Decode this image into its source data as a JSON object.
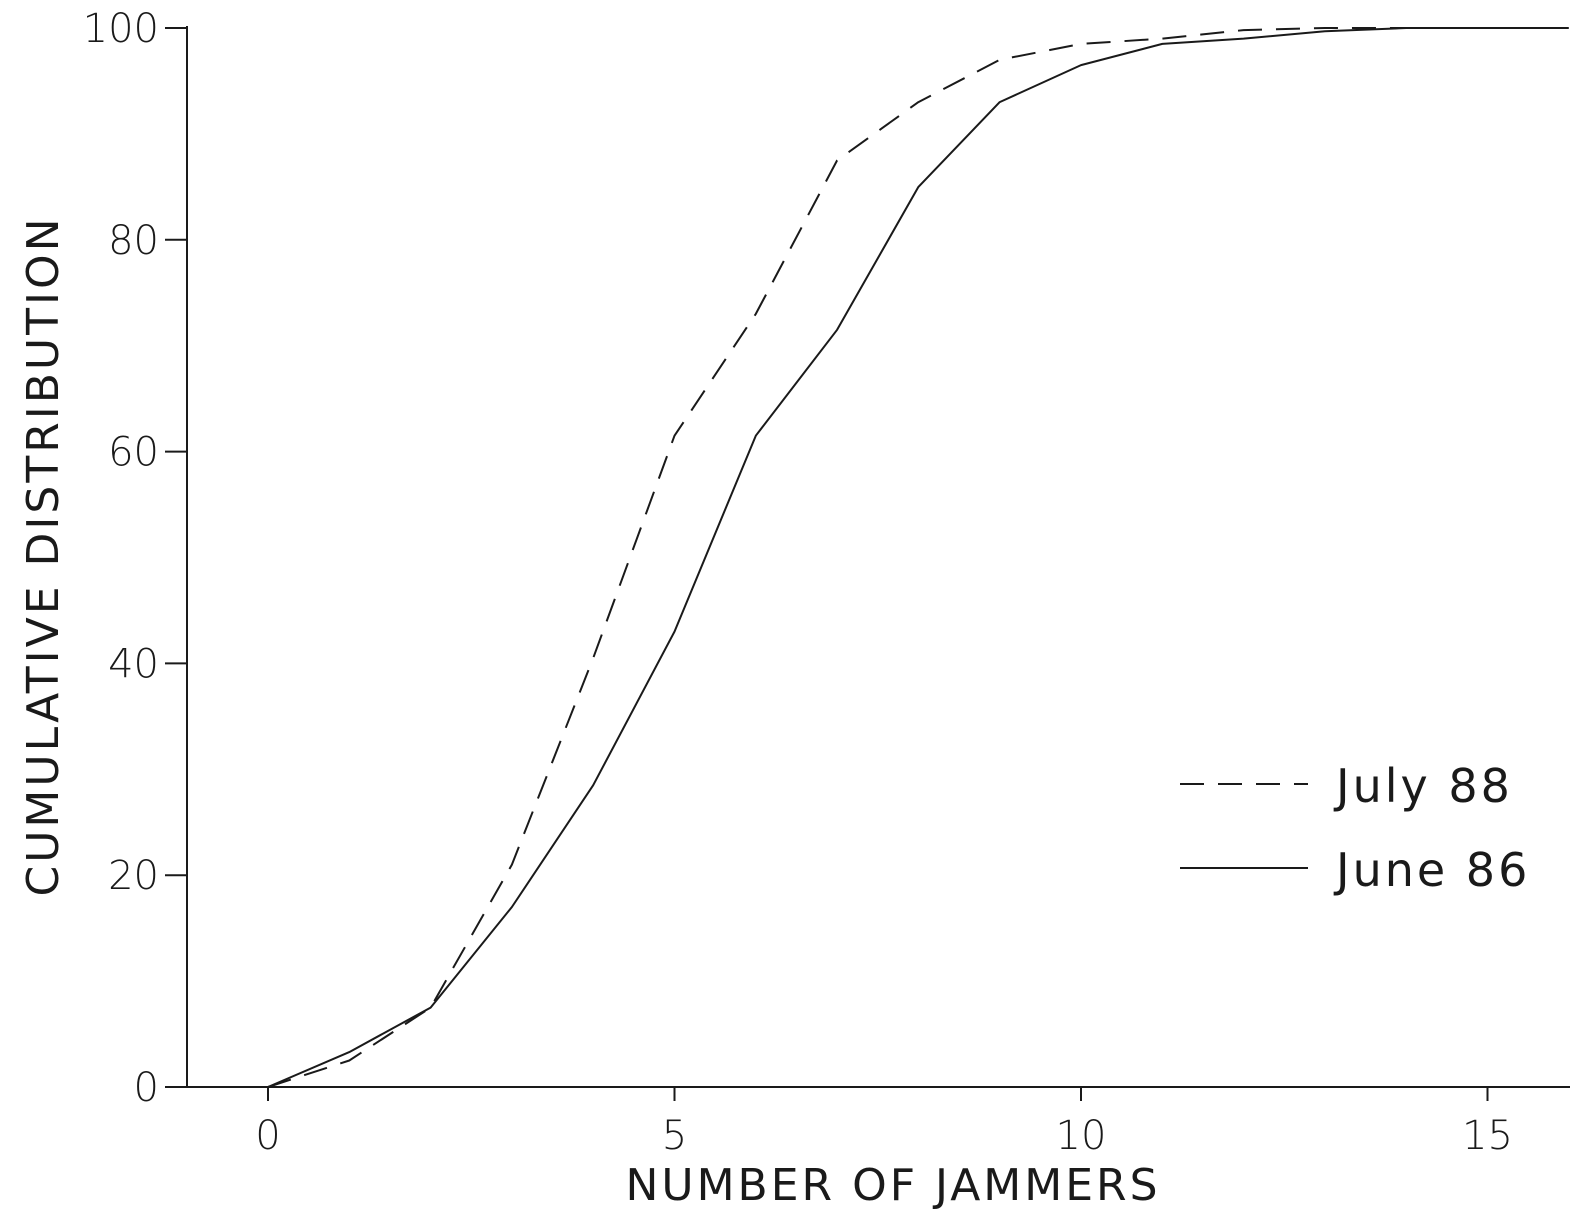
{
  "chart_data": {
    "type": "line",
    "title": "",
    "xlabel": "NUMBER OF JAMMERS",
    "ylabel": "CUMULATIVE DISTRIBUTION",
    "xlim": [
      -1,
      16
    ],
    "ylim": [
      0,
      100
    ],
    "xticks": [
      0,
      5,
      10,
      15
    ],
    "yticks": [
      0,
      20,
      40,
      60,
      80,
      100
    ],
    "grid": false,
    "legend_position": "lower-right",
    "series": [
      {
        "name": "July 88",
        "style": "dashed",
        "color": "#1a1a1a",
        "x": [
          0,
          1,
          2,
          3,
          4,
          5,
          6,
          7,
          8,
          9,
          10,
          11,
          12,
          13,
          14,
          15,
          16
        ],
        "y": [
          0,
          2.5,
          7.5,
          21,
          40.5,
          61.5,
          73,
          87.5,
          93,
          97,
          98.5,
          99,
          99.8,
          100,
          100,
          100,
          100
        ]
      },
      {
        "name": "June 86",
        "style": "solid",
        "color": "#1a1a1a",
        "x": [
          0,
          1,
          2,
          3,
          4,
          5,
          6,
          7,
          8,
          9,
          10,
          11,
          12,
          13,
          14,
          15,
          16
        ],
        "y": [
          0,
          3.3,
          7.5,
          17,
          28.5,
          43,
          61.5,
          71.5,
          85,
          93,
          96.5,
          98.5,
          99,
          99.7,
          100,
          100,
          100
        ]
      }
    ]
  }
}
